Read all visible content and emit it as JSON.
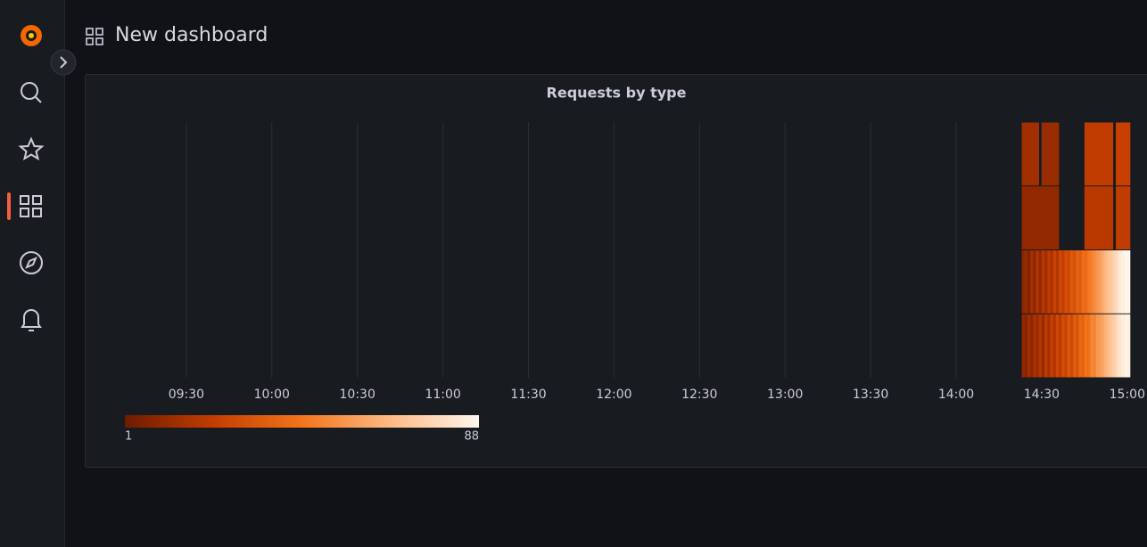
{
  "header": {
    "title": "New dashboard"
  },
  "chart_data": {
    "type": "heatmap",
    "title": "Requests by type",
    "x": [
      "14:23",
      "14:24",
      "14:25",
      "14:26",
      "14:27",
      "14:28",
      "14:29",
      "14:30",
      "14:31",
      "14:32",
      "14:33",
      "14:34",
      "14:35",
      "14:36",
      "14:37",
      "14:38",
      "14:39",
      "14:40",
      "14:41",
      "14:42",
      "14:43",
      "14:44",
      "14:45",
      "14:46",
      "14:47",
      "14:48",
      "14:49",
      "14:50",
      "14:51",
      "14:52",
      "14:53",
      "14:54",
      "14:55",
      "14:56",
      "14:57",
      "14:58",
      "14:59",
      "15:00"
    ],
    "series": [
      {
        "values": [
          14,
          14,
          14,
          14,
          14,
          14,
          null,
          12,
          12,
          12,
          12,
          12,
          12,
          null,
          null,
          null,
          null,
          null,
          null,
          null,
          null,
          null,
          22,
          22,
          22,
          22,
          22,
          22,
          22,
          22,
          22,
          22,
          null,
          24,
          24,
          24,
          24,
          24
        ]
      },
      {
        "values": [
          10,
          10,
          10,
          10,
          10,
          10,
          10,
          10,
          10,
          10,
          10,
          10,
          10,
          null,
          null,
          null,
          null,
          null,
          null,
          null,
          null,
          null,
          20,
          20,
          20,
          20,
          20,
          20,
          20,
          20,
          20,
          20,
          null,
          22,
          22,
          22,
          22,
          22
        ]
      },
      {
        "values": [
          8,
          12,
          6,
          15,
          9,
          18,
          10,
          20,
          14,
          22,
          16,
          25,
          19,
          28,
          23,
          30,
          27,
          34,
          31,
          38,
          35,
          42,
          40,
          46,
          48,
          52,
          55,
          58,
          62,
          66,
          70,
          72,
          76,
          80,
          84,
          86,
          88,
          88
        ]
      },
      {
        "values": [
          10,
          7,
          14,
          9,
          16,
          12,
          19,
          11,
          22,
          15,
          24,
          18,
          27,
          21,
          29,
          25,
          33,
          28,
          36,
          32,
          40,
          37,
          44,
          43,
          50,
          49,
          56,
          57,
          60,
          64,
          68,
          71,
          74,
          79,
          82,
          85,
          87,
          86
        ]
      }
    ],
    "xlim": [
      "08:55",
      "15:06"
    ],
    "xticks": [
      "09:30",
      "10:00",
      "10:30",
      "11:00",
      "11:30",
      "12:00",
      "12:30",
      "13:00",
      "13:30",
      "14:00",
      "14:30",
      "15:00"
    ],
    "zlim": [
      1,
      88
    ],
    "colors": [
      "#6e1b00",
      "#c43d00",
      "#f3741b",
      "#fdba85",
      "#fff5eb"
    ],
    "grid": true
  }
}
